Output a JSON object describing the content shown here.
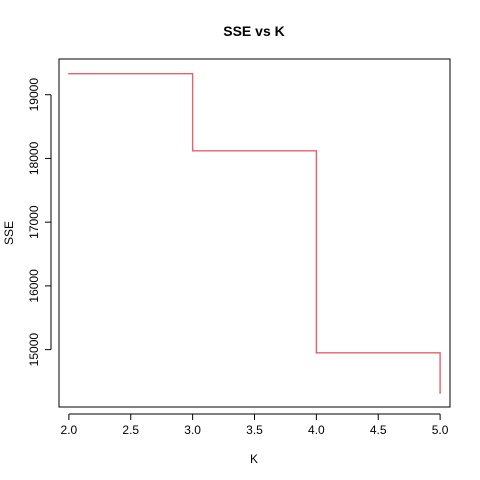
{
  "chart_data": {
    "type": "line",
    "style": "step",
    "title": "SSE vs K",
    "xlabel": "K",
    "ylabel": "SSE",
    "x": [
      2,
      3,
      4,
      5
    ],
    "series": [
      {
        "values": [
          19330,
          18120,
          14950,
          14320
        ],
        "color": "#e8606a"
      }
    ],
    "xlim": [
      1.92,
      5.08
    ],
    "ylim": [
      14100,
      19560
    ],
    "xticks": [
      "2.0",
      "2.5",
      "3.0",
      "3.5",
      "4.0",
      "4.5",
      "5.0"
    ],
    "yticks": [
      "15000",
      "16000",
      "17000",
      "18000",
      "19000"
    ],
    "grid": false
  }
}
